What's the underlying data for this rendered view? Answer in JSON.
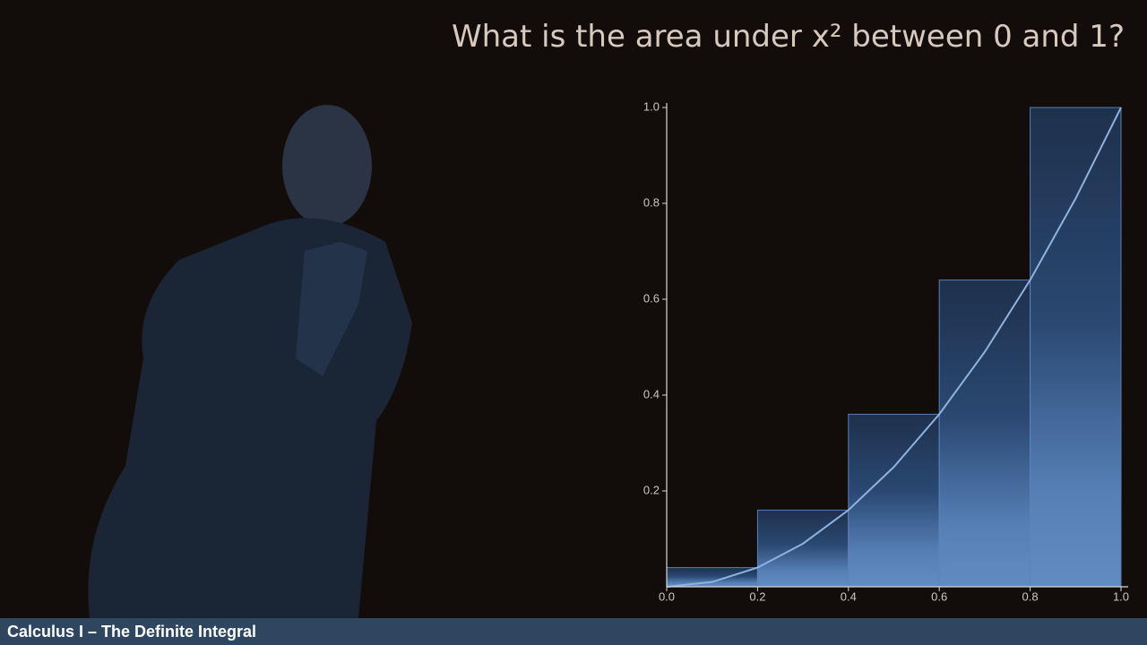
{
  "chart_data": {
    "type": "histogram",
    "title": "What is the area under x² between 0 and 1?",
    "bins": [
      0,
      0.2,
      0.4,
      0.6,
      0.8,
      1
    ],
    "values": [
      0.04,
      0.16,
      0.36,
      0.64,
      1
    ],
    "color": "#5a86c0",
    "line": {
      "x": [
        0,
        0.1,
        0.2,
        0.3,
        0.4,
        0.5,
        0.6,
        0.7,
        0.8,
        0.9,
        1
      ],
      "values": [
        0,
        0.01,
        0.04,
        0.09,
        0.16,
        0.25,
        0.36,
        0.49,
        0.64,
        0.81,
        1
      ],
      "color": "#8fb3e0"
    },
    "xlim": [
      0,
      1
    ],
    "ylim": [
      0,
      1
    ],
    "xticks": [
      {
        "value": 0,
        "label": "0.0"
      },
      0.2,
      0.4,
      0.6,
      0.8,
      {
        "value": 1,
        "label": "1.0"
      }
    ],
    "yticks": [
      0.2,
      0.4,
      0.6,
      0.8,
      {
        "value": 1,
        "label": "1.0"
      }
    ]
  },
  "footer": "Calculus I – The Definite Integral"
}
